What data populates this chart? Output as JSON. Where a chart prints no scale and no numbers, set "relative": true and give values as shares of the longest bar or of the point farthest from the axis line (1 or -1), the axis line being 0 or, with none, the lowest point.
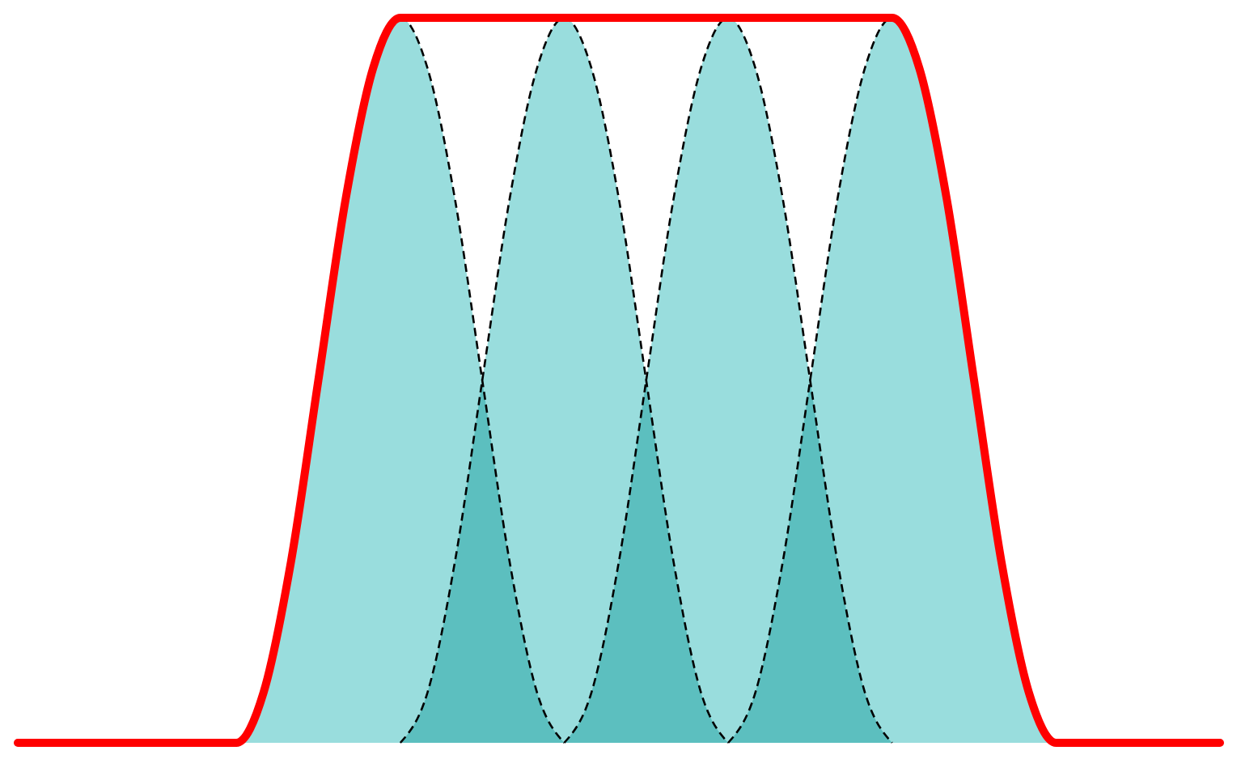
{
  "chart_data": {
    "type": "area",
    "relative": true,
    "grid": false,
    "tick_labels": false,
    "categories": [
      null,
      null,
      null,
      null,
      null,
      null,
      null,
      null,
      null,
      null,
      null,
      null,
      null,
      null,
      null,
      null,
      null,
      null,
      null,
      null,
      null,
      null,
      null,
      null,
      null,
      null,
      null,
      null,
      null,
      null,
      null,
      null,
      null,
      null,
      null,
      null,
      null,
      null,
      null,
      null,
      null,
      null,
      null,
      null,
      null
    ],
    "series": [
      {
        "color": "#99dddd",
        "line_style": "dashed",
        "values": [
          null,
          null,
          null,
          null,
          null,
          null,
          null,
          null,
          0,
          0.07,
          0.25,
          0.5,
          0.75,
          0.93,
          1,
          0.93,
          0.75,
          0.5,
          0.25,
          0.07,
          0,
          null,
          null,
          null,
          null,
          null,
          null,
          null,
          null,
          null,
          null,
          null,
          null,
          null,
          null,
          null,
          null,
          null,
          null,
          null,
          null,
          null,
          null,
          null,
          null
        ]
      },
      {
        "color": "#99dddd",
        "line_style": "dashed",
        "values": [
          null,
          null,
          null,
          null,
          null,
          null,
          null,
          null,
          null,
          null,
          null,
          null,
          null,
          null,
          0,
          0.07,
          0.25,
          0.5,
          0.75,
          0.93,
          1,
          0.93,
          0.75,
          0.5,
          0.25,
          0.07,
          0,
          null,
          null,
          null,
          null,
          null,
          null,
          null,
          null,
          null,
          null,
          null,
          null,
          null,
          null,
          null,
          null,
          null,
          null
        ]
      },
      {
        "color": "#99dddd",
        "line_style": "dashed",
        "values": [
          null,
          null,
          null,
          null,
          null,
          null,
          null,
          null,
          null,
          null,
          null,
          null,
          null,
          null,
          null,
          null,
          null,
          null,
          null,
          null,
          0,
          0.07,
          0.25,
          0.5,
          0.75,
          0.93,
          1,
          0.93,
          0.75,
          0.5,
          0.25,
          0.07,
          0,
          null,
          null,
          null,
          null,
          null,
          null,
          null,
          null,
          null,
          null,
          null,
          null
        ]
      },
      {
        "color": "#99dddd",
        "line_style": "dashed",
        "values": [
          null,
          null,
          null,
          null,
          null,
          null,
          null,
          null,
          null,
          null,
          null,
          null,
          null,
          null,
          null,
          null,
          null,
          null,
          null,
          null,
          null,
          null,
          null,
          null,
          null,
          null,
          0,
          0.07,
          0.25,
          0.5,
          0.75,
          0.93,
          1,
          0.93,
          0.75,
          0.5,
          0.25,
          0.07,
          0,
          null,
          null,
          null,
          null,
          null,
          null
        ]
      },
      {
        "type": "line",
        "color": "#ff0000",
        "line_style": "solid",
        "values": [
          0,
          0,
          0,
          0,
          0,
          0,
          0,
          0,
          0,
          0.07,
          0.25,
          0.5,
          0.75,
          0.93,
          1,
          1,
          1,
          1,
          1,
          1,
          1,
          1,
          1,
          1,
          1,
          1,
          1,
          1,
          1,
          1,
          1,
          1,
          1,
          0.93,
          0.75,
          0.5,
          0.25,
          0.07,
          0,
          0,
          0,
          0,
          0,
          0,
          0
        ]
      }
    ]
  }
}
